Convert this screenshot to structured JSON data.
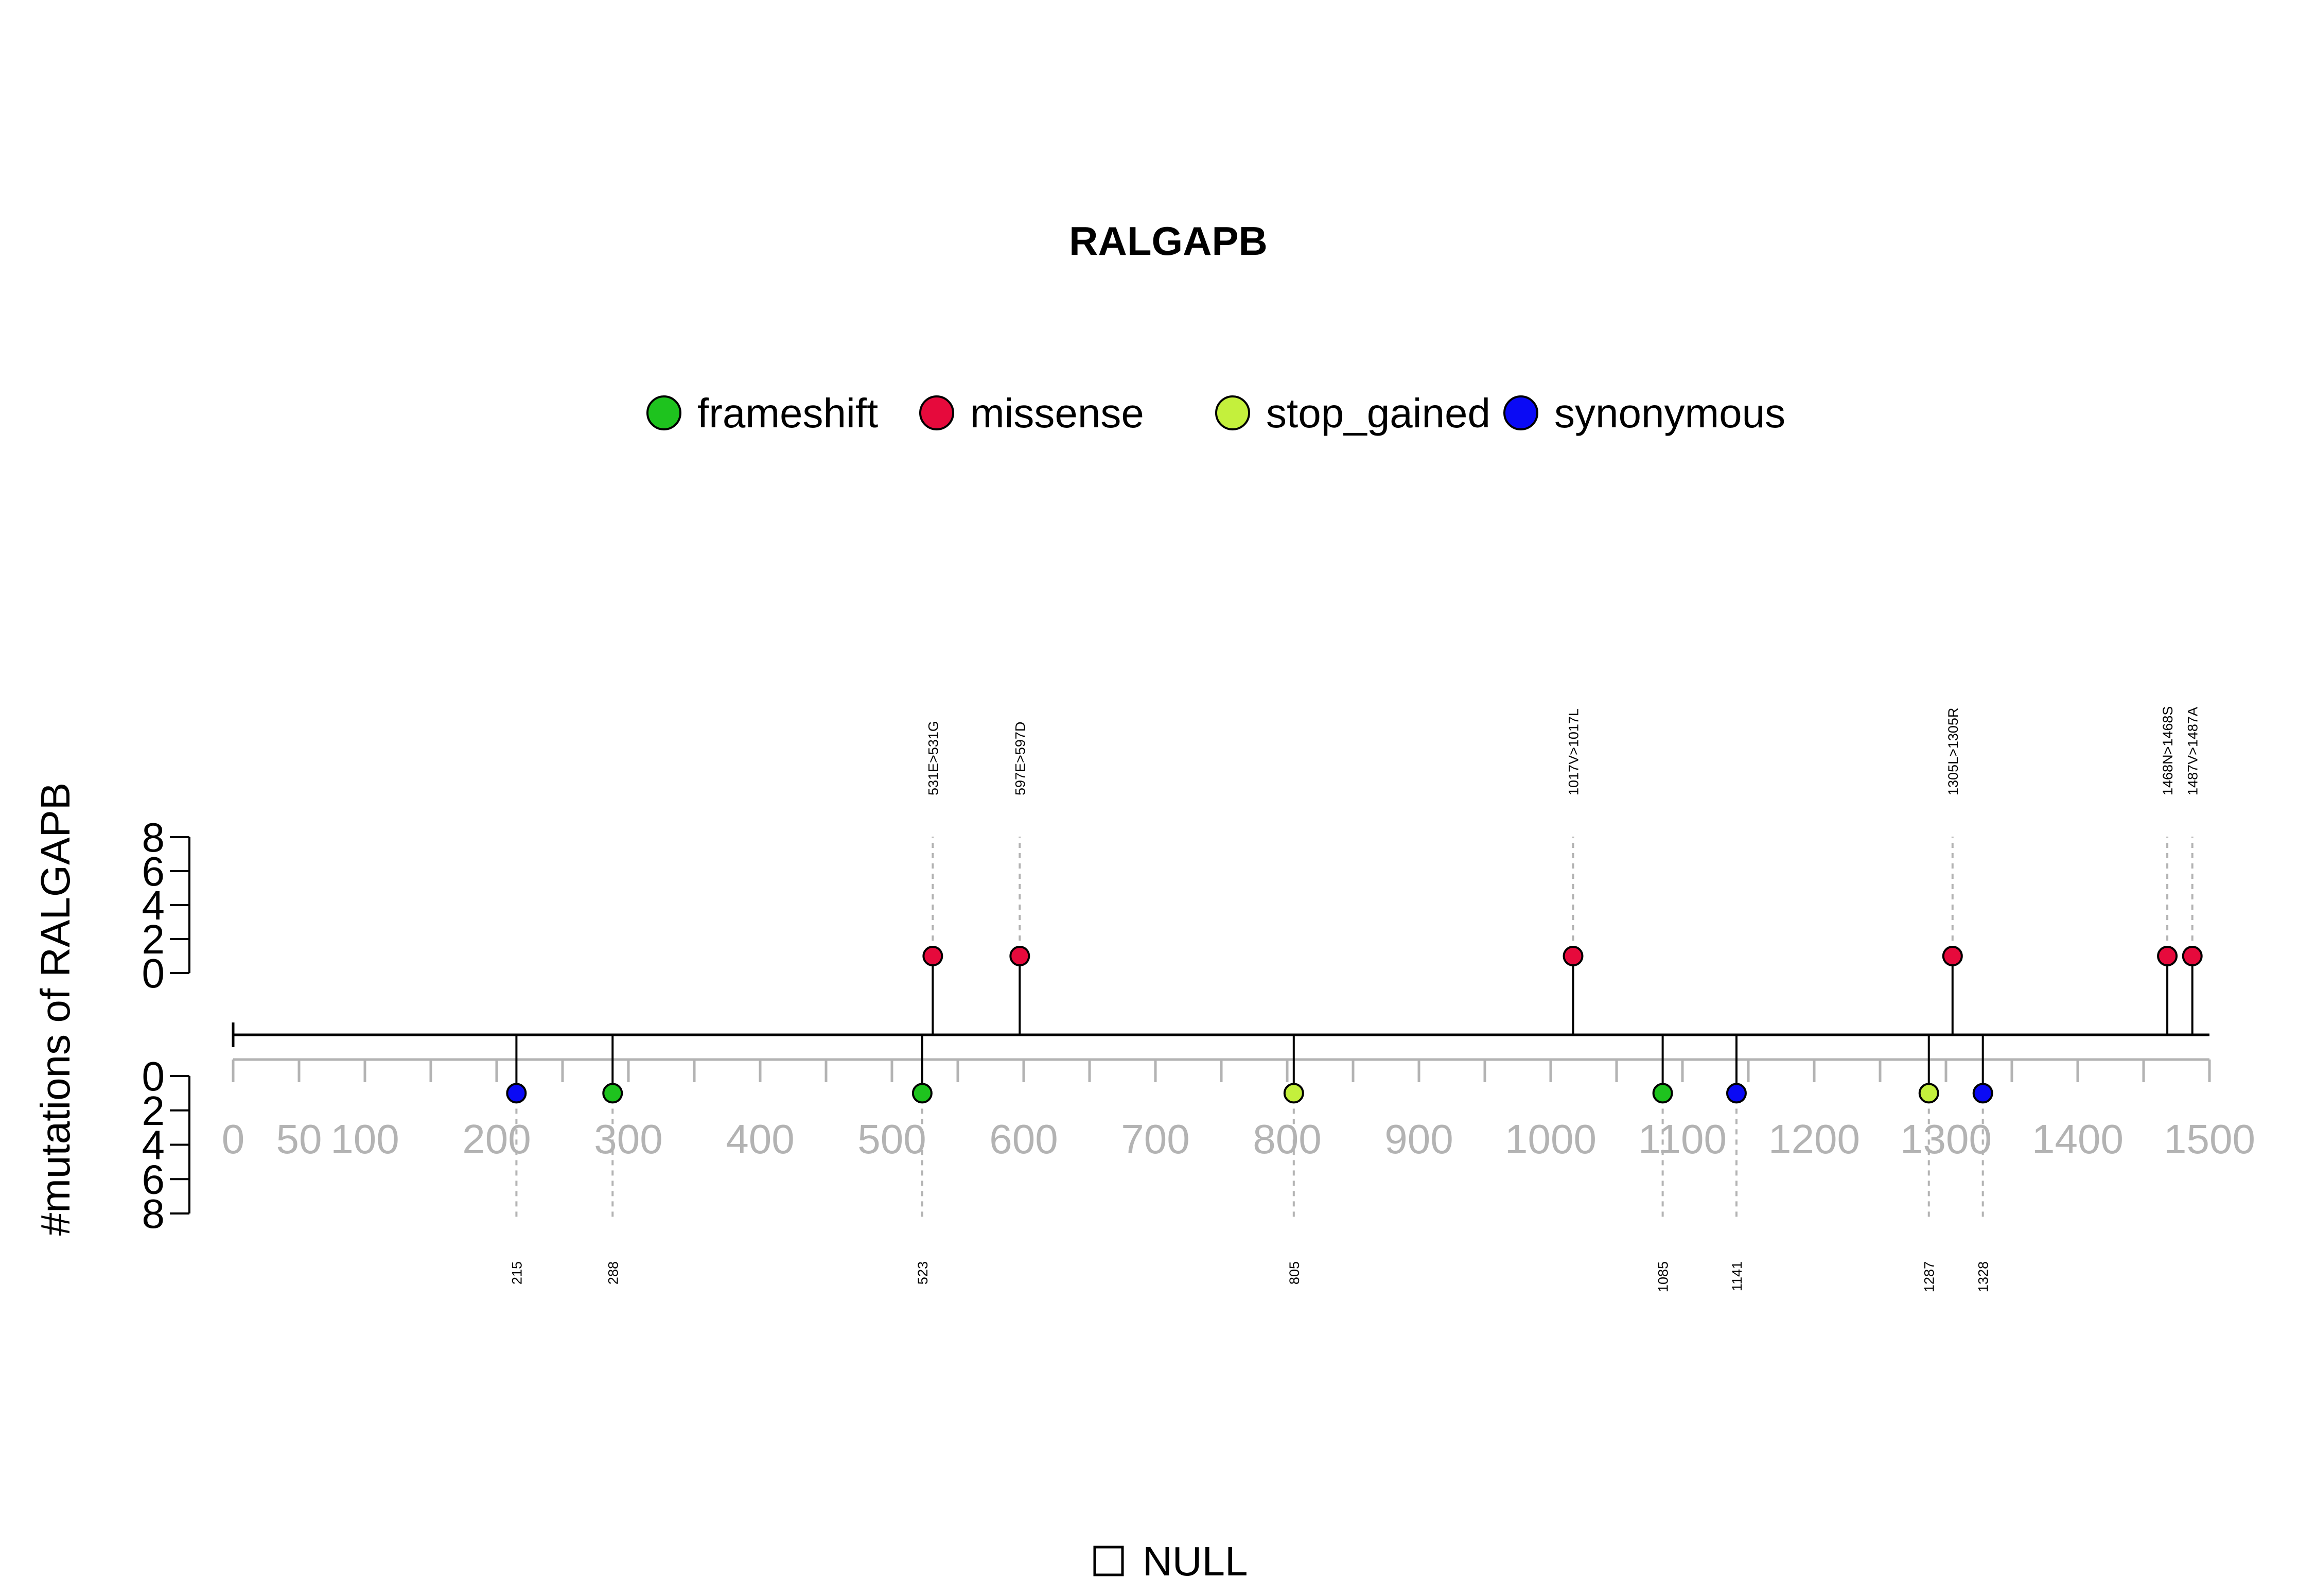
{
  "chart_data": {
    "type": "lollipop",
    "title": "RALGAPB",
    "ylabel": "#mutations of RALGAPB",
    "x_range": [
      0,
      1500
    ],
    "x_ticks": [
      0,
      50,
      100,
      200,
      300,
      400,
      500,
      600,
      700,
      800,
      900,
      1000,
      1100,
      1200,
      1300,
      1400,
      1500
    ],
    "x_tick_labels": [
      "0",
      "50",
      "100",
      "200",
      "300",
      "400",
      "500",
      "600",
      "700",
      "800",
      "900",
      "1000",
      "1100",
      "1200",
      "1300",
      "1400",
      "1500"
    ],
    "x_minor_step": 50,
    "y_ticks": [
      0,
      2,
      4,
      6,
      8
    ],
    "y_tick_labels": [
      "0",
      "2",
      "4",
      "6",
      "8"
    ],
    "y_range": [
      0,
      8
    ],
    "legend": [
      {
        "name": "frameshift",
        "color": "#1ec31e"
      },
      {
        "name": "missense",
        "color": "#e60a3c"
      },
      {
        "name": "stop_gained",
        "color": "#c4f03c"
      },
      {
        "name": "synonymous",
        "color": "#0a0af5"
      }
    ],
    "upper_mutations": [
      {
        "position": 531,
        "count": 1,
        "type": "missense",
        "label": "531E>531G"
      },
      {
        "position": 597,
        "count": 1,
        "type": "missense",
        "label": "597E>597D"
      },
      {
        "position": 1017,
        "count": 1,
        "type": "missense",
        "label": "1017V>1017L"
      },
      {
        "position": 1305,
        "count": 1,
        "type": "missense",
        "label": "1305L>1305R"
      },
      {
        "position": 1468,
        "count": 1,
        "type": "missense",
        "label": "1468N>1468S"
      },
      {
        "position": 1487,
        "count": 1,
        "type": "missense",
        "label": "1487V>1487A"
      }
    ],
    "lower_mutations": [
      {
        "position": 215,
        "count": 1,
        "type": "synonymous",
        "label": "215"
      },
      {
        "position": 288,
        "count": 1,
        "type": "frameshift",
        "label": "288"
      },
      {
        "position": 523,
        "count": 1,
        "type": "frameshift",
        "label": "523"
      },
      {
        "position": 805,
        "count": 1,
        "type": "stop_gained",
        "label": "805"
      },
      {
        "position": 1085,
        "count": 1,
        "type": "frameshift",
        "label": "1085"
      },
      {
        "position": 1141,
        "count": 1,
        "type": "synonymous",
        "label": "1141"
      },
      {
        "position": 1287,
        "count": 1,
        "type": "stop_gained",
        "label": "1287"
      },
      {
        "position": 1328,
        "count": 1,
        "type": "synonymous",
        "label": "1328"
      }
    ]
  },
  "domain_legend": {
    "label": "NULL"
  }
}
